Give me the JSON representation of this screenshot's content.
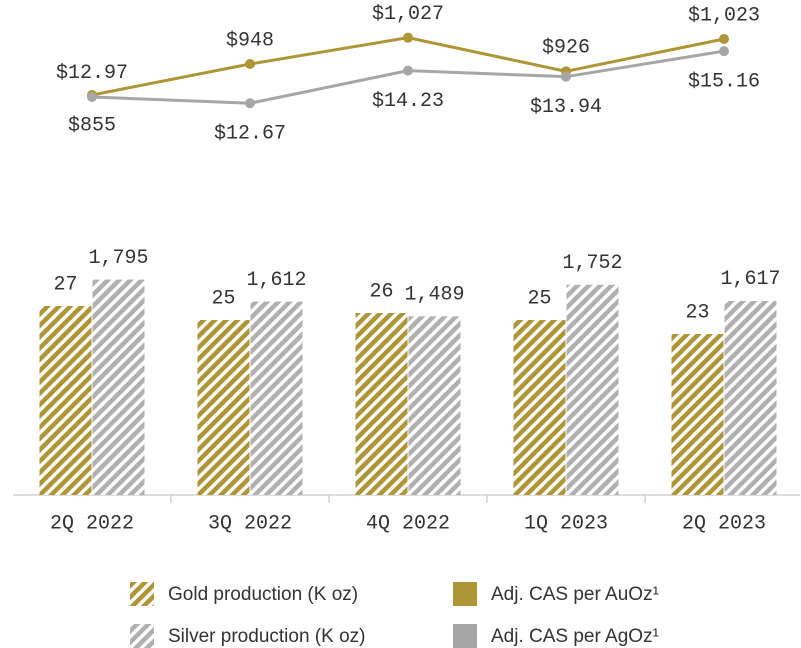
{
  "chart_data": {
    "type": "combo",
    "categories": [
      "2Q 2022",
      "3Q 2022",
      "4Q 2022",
      "1Q 2023",
      "2Q 2023"
    ],
    "series": [
      {
        "name": "Gold production (K oz)",
        "type": "bar",
        "color": "#ae9535",
        "hatch": true,
        "values": [
          27,
          25,
          26,
          25,
          23
        ],
        "ylim": [
          0,
          60
        ]
      },
      {
        "name": "Silver production (K oz)",
        "type": "bar",
        "color": "#b0b0b0",
        "hatch": true,
        "values": [
          1795,
          1612,
          1489,
          1752,
          1617
        ],
        "value_labels": [
          "1,795",
          "1,612",
          "1,489",
          "1,752",
          "1,617"
        ],
        "ylim": [
          0,
          3500
        ]
      },
      {
        "name": "Adj. CAS per AuOz¹",
        "type": "line",
        "color": "#ae9535",
        "values": [
          855,
          948,
          1027,
          926,
          1023
        ],
        "value_labels": [
          "$855",
          "$948",
          "$1,027",
          "$926",
          "$1,023"
        ],
        "ylim": [
          600,
          1080
        ]
      },
      {
        "name": "Adj. CAS per AgOz¹",
        "type": "line",
        "color": "#a6a6a6",
        "values": [
          12.97,
          12.67,
          14.23,
          13.94,
          15.16
        ],
        "value_labels": [
          "$12.97",
          "$12.67",
          "$14.23",
          "$13.94",
          "$15.16"
        ],
        "ylim": [
          9,
          16.65
        ]
      }
    ]
  }
}
